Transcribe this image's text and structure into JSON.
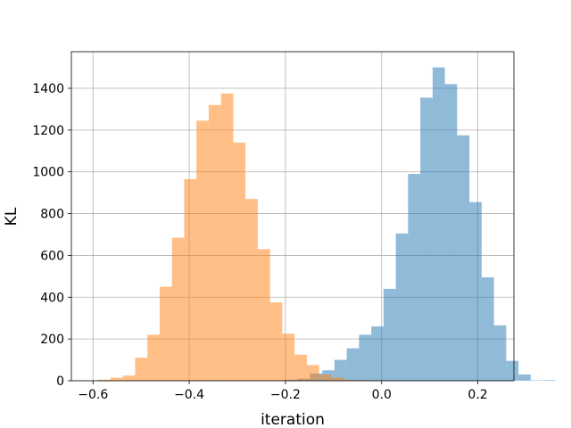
{
  "chart_data": {
    "type": "histogram",
    "title": "",
    "xlabel": "iteration",
    "ylabel": "KL",
    "xlim": [
      -0.645,
      0.275
    ],
    "ylim": [
      0,
      1575
    ],
    "xticks": [
      -0.6,
      -0.4,
      -0.2,
      0.0,
      0.2
    ],
    "xtick_labels": [
      "−0.6",
      "−0.4",
      "−0.2",
      "0.0",
      "0.2"
    ],
    "yticks": [
      0,
      200,
      400,
      600,
      800,
      1000,
      1200,
      1400
    ],
    "ytick_labels": [
      "0",
      "200",
      "400",
      "600",
      "800",
      "1000",
      "1200",
      "1400"
    ],
    "grid": true,
    "series": [
      {
        "color": "#1f77b4",
        "opacity": 0.5,
        "bin_start": -0.2,
        "bin_width": 0.0255,
        "values": [
          5,
          10,
          35,
          50,
          100,
          155,
          220,
          260,
          440,
          705,
          990,
          1355,
          1500,
          1420,
          1175,
          855,
          495,
          265,
          95,
          30,
          2,
          3
        ]
      },
      {
        "color": "#ff7f0e",
        "opacity": 0.5,
        "bin_start": -0.589,
        "bin_width": 0.0255,
        "values": [
          5,
          15,
          25,
          110,
          220,
          450,
          685,
          965,
          1245,
          1320,
          1375,
          1140,
          870,
          630,
          375,
          225,
          125,
          75,
          30,
          15,
          5,
          3,
          2,
          1
        ]
      }
    ]
  }
}
